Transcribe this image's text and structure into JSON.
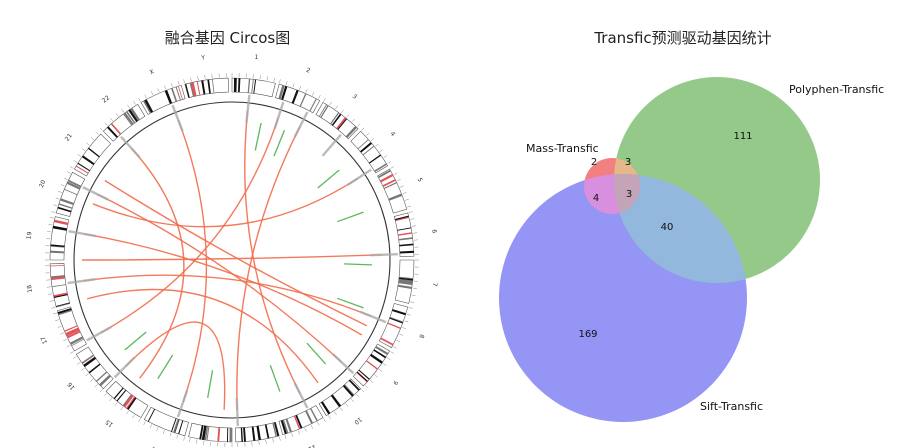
{
  "circos": {
    "title": "融合基因 Circos图",
    "chromosomes": [
      "1",
      "2",
      "3",
      "4",
      "5",
      "6",
      "7",
      "8",
      "9",
      "10",
      "11",
      "12",
      "13",
      "14",
      "15",
      "16",
      "17",
      "18",
      "19",
      "20",
      "21",
      "22",
      "X",
      "Y"
    ],
    "links": [
      {
        "a": 292,
        "b": 57
      },
      {
        "a": 296,
        "b": 133
      },
      {
        "a": 302,
        "b": 116
      },
      {
        "a": 241,
        "b": 18
      },
      {
        "a": 6,
        "b": 153
      },
      {
        "a": 27,
        "b": 178
      },
      {
        "a": 183,
        "b": 225
      },
      {
        "a": 270,
        "b": 88
      },
      {
        "a": 262,
        "b": 112
      },
      {
        "a": 318,
        "b": 218
      },
      {
        "a": 339,
        "b": 199
      },
      {
        "a": 145,
        "b": 255
      },
      {
        "a": 280,
        "b": 120
      }
    ],
    "colors": {
      "link": "#f26b4a",
      "marker": "#5cb85c",
      "band_dark": "#111111",
      "band_light": "#ffffff",
      "band_red": "#e0545a"
    }
  },
  "venn": {
    "title": "Transfic预测驱动基因统计",
    "sets": [
      {
        "name": "Mass-Transfic",
        "color": "#f28080"
      },
      {
        "name": "Polyphen-Transfic",
        "color": "#94c98a"
      },
      {
        "name": "Sift-Transfic",
        "color": "#9595f5"
      }
    ],
    "counts": {
      "mass_only": "2",
      "mass_polyphen": "3",
      "polyphen_only": "111",
      "mass_sift": "4",
      "all_three": "3",
      "polyphen_sift": "40",
      "sift_only": "169"
    },
    "colors": {
      "mass_polyphen": "#e5b78a",
      "mass_sift": "#d98fe0",
      "polyphen_sift": "#93b8dd",
      "all_three": "#c4a4b8"
    }
  }
}
